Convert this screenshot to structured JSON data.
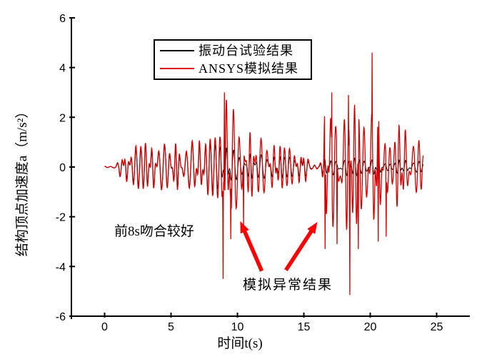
{
  "chart_data": {
    "type": "line",
    "title": "",
    "xlabel": "时间t(s)",
    "ylabel": "结构顶点加速度a（m/s²）",
    "xlim": [
      -2.5,
      27.5
    ],
    "ylim": [
      -6,
      6
    ],
    "x_ticks": [
      0,
      5,
      10,
      15,
      20,
      25
    ],
    "y_ticks": [
      6,
      4,
      2,
      0,
      -2,
      -4,
      -6
    ],
    "grid": false,
    "legend_position": "top-center-inside",
    "axis_color": "#000000",
    "arrow_color": "#ff0000",
    "oscillation": {
      "dominant_freq_hz": 2.3,
      "secondary_freq_hz": 3.4,
      "pm_amp_1": 1.25,
      "pm_freq_1": 0.37,
      "pm_amp_2": 1.7,
      "pm_freq_2": 0.53,
      "mix_1": 0.62,
      "mix_2": 0.46
    },
    "series": [
      {
        "name": "振动台试验结果",
        "color": "#000000",
        "role": "shake-table-test",
        "t_range": [
          0,
          24
        ],
        "envelope": [
          [
            0,
            0.02
          ],
          [
            0.5,
            0.1
          ],
          [
            1,
            0.25
          ],
          [
            1.5,
            0.4
          ],
          [
            2,
            0.6
          ],
          [
            2.5,
            0.75
          ],
          [
            3,
            0.8
          ],
          [
            4,
            0.8
          ],
          [
            5,
            0.85
          ],
          [
            6,
            0.85
          ],
          [
            7,
            0.9
          ],
          [
            8,
            0.9
          ],
          [
            9,
            0.75
          ],
          [
            10,
            0.6
          ],
          [
            11,
            0.5
          ],
          [
            12,
            0.45
          ],
          [
            13,
            0.4
          ],
          [
            14,
            0.38
          ],
          [
            15,
            0.35
          ],
          [
            16,
            0.33
          ],
          [
            17,
            0.3
          ],
          [
            18,
            0.32
          ],
          [
            19,
            0.35
          ],
          [
            20,
            0.32
          ],
          [
            21,
            0.3
          ],
          [
            22,
            0.27
          ],
          [
            23,
            0.24
          ],
          [
            24,
            0.2
          ]
        ],
        "spikes": []
      },
      {
        "name": "ANSYS模拟结果",
        "color": "#d40000",
        "role": "ansys-simulation",
        "t_range": [
          0,
          24
        ],
        "envelope": [
          [
            0,
            0.03
          ],
          [
            0.5,
            0.15
          ],
          [
            1,
            0.3
          ],
          [
            1.5,
            0.5
          ],
          [
            2,
            0.7
          ],
          [
            2.5,
            0.9
          ],
          [
            3,
            0.9
          ],
          [
            4,
            0.85
          ],
          [
            5,
            0.9
          ],
          [
            6,
            0.95
          ],
          [
            7,
            1.0
          ],
          [
            8,
            1.05
          ],
          [
            8.7,
            1.2
          ],
          [
            8.9,
            2.7
          ],
          [
            9.4,
            2.4
          ],
          [
            9.8,
            2.1
          ],
          [
            10.3,
            1.7
          ],
          [
            11,
            1.3
          ],
          [
            11.5,
            1.15
          ],
          [
            12,
            1.0
          ],
          [
            13,
            0.85
          ],
          [
            14,
            0.7
          ],
          [
            15,
            0.55
          ],
          [
            16,
            0.45
          ],
          [
            16.45,
            0.5
          ],
          [
            16.6,
            2.4
          ],
          [
            17,
            2.3
          ],
          [
            17.5,
            2.2
          ],
          [
            18,
            2.3
          ],
          [
            18.5,
            2.4
          ],
          [
            19,
            2.3
          ],
          [
            19.5,
            2.2
          ],
          [
            20,
            2.4
          ],
          [
            20.5,
            2.3
          ],
          [
            21,
            2.1
          ],
          [
            21.5,
            1.9
          ],
          [
            22,
            1.7
          ],
          [
            22.5,
            1.45
          ],
          [
            23,
            1.25
          ],
          [
            23.5,
            1.05
          ],
          [
            24,
            0.9
          ]
        ],
        "spikes": [
          [
            8.92,
            -4.5
          ],
          [
            9.02,
            3.0
          ],
          [
            9.5,
            -2.9
          ],
          [
            10.45,
            -2.4
          ],
          [
            16.6,
            -3.3
          ],
          [
            17.1,
            3.0
          ],
          [
            17.5,
            -3.1
          ],
          [
            18.35,
            2.9
          ],
          [
            18.45,
            -5.15
          ],
          [
            19.1,
            -3.3
          ],
          [
            20.15,
            4.6
          ],
          [
            20.6,
            -3.0
          ],
          [
            21.2,
            -2.8
          ]
        ]
      }
    ],
    "annotations": [
      {
        "text": "前8s吻合较好",
        "t": 0.7,
        "a": -2.3
      },
      {
        "text": "模拟异常结果",
        "t": 10.4,
        "a": -4.45
      }
    ],
    "arrows": [
      {
        "from_t": 11.83,
        "from_a": -4.18,
        "to_t": 10.21,
        "to_a": -2.18
      },
      {
        "from_t": 13.65,
        "from_a": -4.15,
        "to_t": 16.02,
        "to_a": -2.21
      }
    ]
  }
}
